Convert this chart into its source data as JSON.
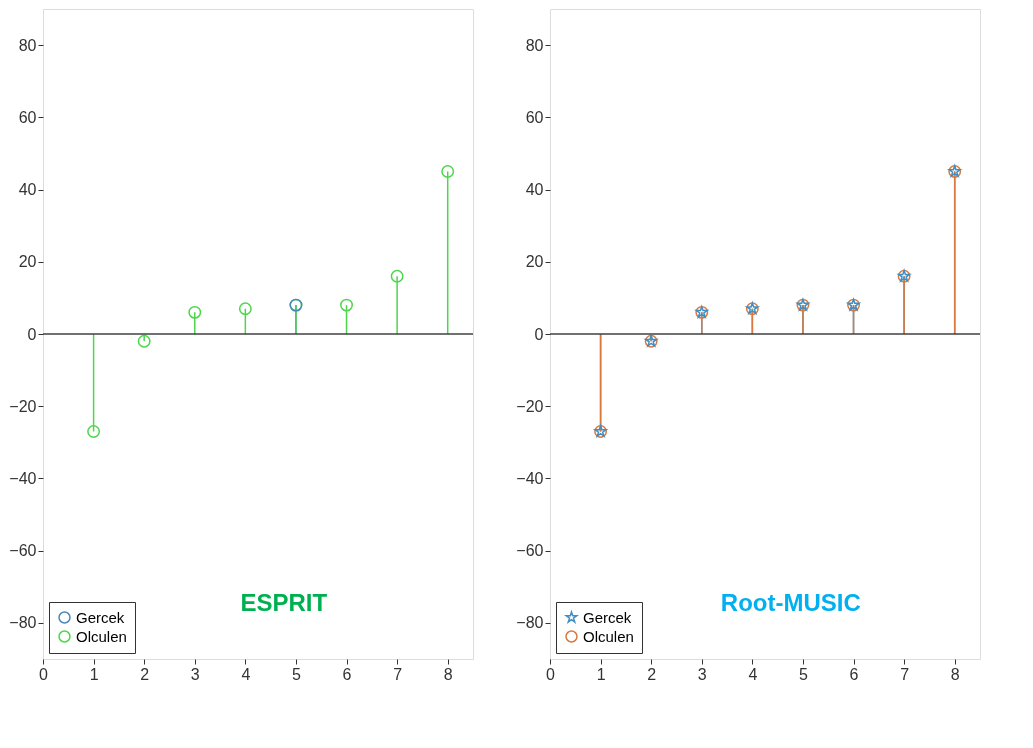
{
  "chart_data": [
    {
      "type": "lollipop",
      "title": "ESPRIT",
      "x": [
        1,
        2,
        3,
        4,
        5,
        6,
        7,
        8
      ],
      "xlim": [
        0,
        8.5
      ],
      "xticks": [
        0,
        1,
        2,
        3,
        4,
        5,
        6,
        7,
        8
      ],
      "ylim": [
        -90,
        90
      ],
      "yticks": [
        -80,
        -60,
        -40,
        -20,
        0,
        20,
        40,
        60,
        80
      ],
      "legend": "bottom left",
      "series": [
        {
          "name": "Gercek",
          "color": "#4a8ab8",
          "marker": "circle",
          "values": [
            null,
            null,
            null,
            null,
            8,
            null,
            null,
            null
          ]
        },
        {
          "name": "Olculen",
          "color": "#4cd64c",
          "marker": "circle",
          "values": [
            -27,
            -2,
            6,
            7,
            8,
            8,
            16,
            45
          ]
        }
      ]
    },
    {
      "type": "lollipop",
      "title": "Root-MUSIC",
      "x": [
        1,
        2,
        3,
        4,
        5,
        6,
        7,
        8
      ],
      "xlim": [
        0,
        8.5
      ],
      "xticks": [
        0,
        1,
        2,
        3,
        4,
        5,
        6,
        7,
        8
      ],
      "ylim": [
        -90,
        90
      ],
      "yticks": [
        -80,
        -60,
        -40,
        -20,
        0,
        20,
        40,
        60,
        80
      ],
      "legend": "bottom left",
      "series": [
        {
          "name": "Gercek",
          "color": "#3f8fc4",
          "marker": "star",
          "values": [
            -27,
            -2,
            6,
            7,
            8,
            8,
            16,
            45
          ]
        },
        {
          "name": "Olculen",
          "color": "#d9793f",
          "marker": "circle",
          "values": [
            -27,
            -2,
            6,
            7,
            8,
            8,
            16,
            45
          ]
        }
      ]
    }
  ]
}
